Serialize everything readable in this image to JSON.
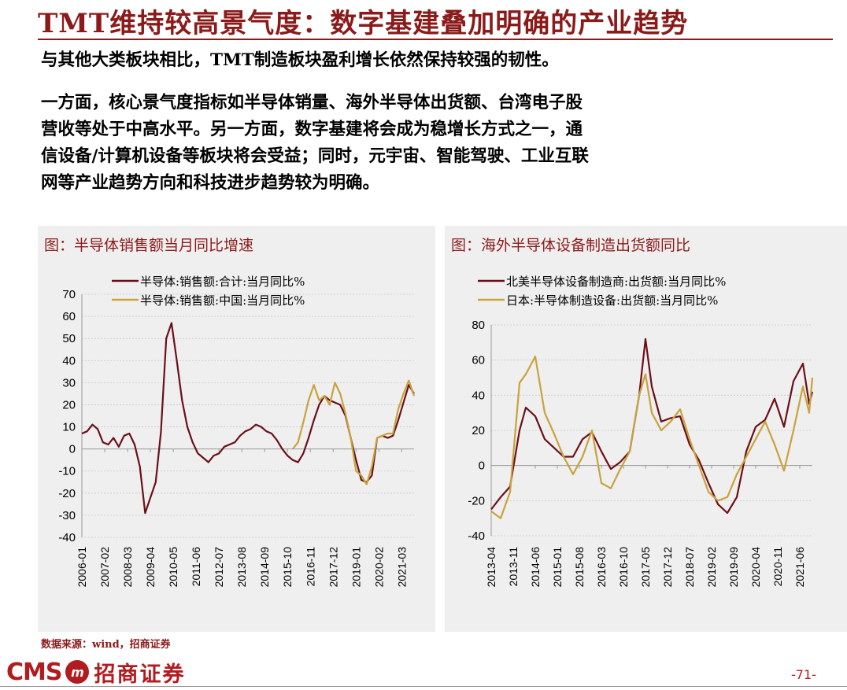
{
  "title": "TMT维持较高景气度：数字基建叠加明确的产业趋势",
  "paragraph1": "与其他大类板块相比，TMT制造板块盈利增长依然保持较强的韧性。",
  "paragraph2_lines": [
    "一方面，核心景气度指标如半导体销量、海外半导体出货额、台湾电子股",
    "营收等处于中高水平。另一方面，数字基建将会成为稳增长方式之一，通",
    "信设备/计算机设备等板块将会受益；同时，元宇宙、智能驾驶、工业互联",
    "网等产业趋势方向和科技进步趋势较为明确。"
  ],
  "source": "数据来源：wind，招商证券",
  "logo": {
    "cms": "CMS",
    "badge": "m",
    "cn": "招商证券"
  },
  "page_number": "-71-",
  "colors": {
    "brand": "#8b1a1a",
    "series_dark": "#6b0f1a",
    "series_gold": "#c9a23c",
    "panel_bg": "#efefef"
  },
  "chart_data": [
    {
      "type": "line",
      "title": "图：半导体销售额当月同比增速",
      "xlabel": "",
      "ylabel": "",
      "ylim": [
        -40,
        70
      ],
      "yticks": [
        70,
        60,
        50,
        40,
        30,
        20,
        10,
        0,
        -10,
        -20,
        -30,
        -40
      ],
      "x_tick_labels": [
        "2006-01",
        "2007-02",
        "2008-03",
        "2009-04",
        "2010-05",
        "2011-06",
        "2012-07",
        "2013-08",
        "2014-09",
        "2015-10",
        "2016-11",
        "2017-12",
        "2019-01",
        "2020-02",
        "2021-03"
      ],
      "x_range": [
        "2006-01",
        "2021-10"
      ],
      "grid": true,
      "legend": "top-center",
      "series": [
        {
          "name": "半导体:销售额:合计:当月同比%",
          "color": "#6b0f1a",
          "points": [
            [
              "2006-01",
              7
            ],
            [
              "2006-04",
              8
            ],
            [
              "2006-07",
              11
            ],
            [
              "2006-10",
              9
            ],
            [
              "2007-01",
              3
            ],
            [
              "2007-04",
              2
            ],
            [
              "2007-07",
              5
            ],
            [
              "2007-10",
              1
            ],
            [
              "2008-01",
              6
            ],
            [
              "2008-04",
              7
            ],
            [
              "2008-07",
              2
            ],
            [
              "2008-10",
              -8
            ],
            [
              "2009-01",
              -29
            ],
            [
              "2009-04",
              -22
            ],
            [
              "2009-07",
              -15
            ],
            [
              "2009-10",
              8
            ],
            [
              "2010-01",
              50
            ],
            [
              "2010-04",
              57
            ],
            [
              "2010-07",
              40
            ],
            [
              "2010-10",
              22
            ],
            [
              "2011-01",
              10
            ],
            [
              "2011-04",
              3
            ],
            [
              "2011-07",
              -2
            ],
            [
              "2011-10",
              -4
            ],
            [
              "2012-01",
              -6
            ],
            [
              "2012-04",
              -3
            ],
            [
              "2012-07",
              -2
            ],
            [
              "2012-10",
              1
            ],
            [
              "2013-01",
              2
            ],
            [
              "2013-04",
              3
            ],
            [
              "2013-07",
              6
            ],
            [
              "2013-10",
              8
            ],
            [
              "2014-01",
              9
            ],
            [
              "2014-04",
              11
            ],
            [
              "2014-07",
              10
            ],
            [
              "2014-10",
              8
            ],
            [
              "2015-01",
              7
            ],
            [
              "2015-04",
              4
            ],
            [
              "2015-07",
              0
            ],
            [
              "2015-10",
              -3
            ],
            [
              "2016-01",
              -5
            ],
            [
              "2016-04",
              -6
            ],
            [
              "2016-07",
              -2
            ],
            [
              "2016-10",
              5
            ],
            [
              "2017-01",
              13
            ],
            [
              "2017-04",
              20
            ],
            [
              "2017-07",
              24
            ],
            [
              "2017-10",
              22
            ],
            [
              "2018-01",
              21
            ],
            [
              "2018-04",
              20
            ],
            [
              "2018-07",
              15
            ],
            [
              "2018-10",
              5
            ],
            [
              "2019-01",
              -5
            ],
            [
              "2019-04",
              -14
            ],
            [
              "2019-07",
              -15
            ],
            [
              "2019-10",
              -12
            ],
            [
              "2020-01",
              5
            ],
            [
              "2020-04",
              6
            ],
            [
              "2020-07",
              5
            ],
            [
              "2020-10",
              6
            ],
            [
              "2021-01",
              13
            ],
            [
              "2021-04",
              21
            ],
            [
              "2021-07",
              29
            ],
            [
              "2021-10",
              25
            ]
          ]
        },
        {
          "name": "半导体:销售额:中国:当月同比%",
          "color": "#c9a23c",
          "points": [
            [
              "2016-01",
              0
            ],
            [
              "2016-04",
              3
            ],
            [
              "2016-07",
              12
            ],
            [
              "2016-10",
              22
            ],
            [
              "2017-01",
              29
            ],
            [
              "2017-04",
              22
            ],
            [
              "2017-07",
              24
            ],
            [
              "2017-10",
              20
            ],
            [
              "2018-01",
              30
            ],
            [
              "2018-04",
              25
            ],
            [
              "2018-07",
              16
            ],
            [
              "2018-10",
              5
            ],
            [
              "2019-01",
              -10
            ],
            [
              "2019-04",
              -12
            ],
            [
              "2019-07",
              -16
            ],
            [
              "2019-10",
              -8
            ],
            [
              "2020-01",
              5
            ],
            [
              "2020-04",
              6
            ],
            [
              "2020-07",
              7
            ],
            [
              "2020-10",
              7
            ],
            [
              "2021-01",
              18
            ],
            [
              "2021-04",
              25
            ],
            [
              "2021-07",
              31
            ],
            [
              "2021-10",
              24
            ]
          ]
        }
      ]
    },
    {
      "type": "line",
      "title": "图：海外半导体设备制造出货额同比",
      "xlabel": "",
      "ylabel": "",
      "ylim": [
        -40,
        80
      ],
      "yticks": [
        80,
        60,
        40,
        20,
        0,
        -20,
        -40
      ],
      "x_tick_labels": [
        "2013-04",
        "2013-11",
        "2014-06",
        "2015-01",
        "2015-08",
        "2016-03",
        "2016-10",
        "2017-05",
        "2017-12",
        "2018-07",
        "2019-02",
        "2019-09",
        "2020-04",
        "2020-11",
        "2021-06"
      ],
      "x_range": [
        "2013-04",
        "2021-10"
      ],
      "grid": true,
      "legend": "top-center",
      "series": [
        {
          "name": "北美半导体设备制造商:出货额:当月同比%",
          "color": "#6b0f1a",
          "points": [
            [
              "2013-04",
              -25
            ],
            [
              "2013-07",
              -18
            ],
            [
              "2013-10",
              -12
            ],
            [
              "2014-01",
              20
            ],
            [
              "2014-03",
              33
            ],
            [
              "2014-06",
              28
            ],
            [
              "2014-09",
              15
            ],
            [
              "2014-12",
              10
            ],
            [
              "2015-03",
              5
            ],
            [
              "2015-06",
              5
            ],
            [
              "2015-09",
              15
            ],
            [
              "2015-12",
              19
            ],
            [
              "2016-03",
              8
            ],
            [
              "2016-06",
              -2
            ],
            [
              "2016-09",
              2
            ],
            [
              "2016-12",
              8
            ],
            [
              "2017-03",
              40
            ],
            [
              "2017-05",
              72
            ],
            [
              "2017-07",
              45
            ],
            [
              "2017-10",
              25
            ],
            [
              "2018-01",
              27
            ],
            [
              "2018-04",
              28
            ],
            [
              "2018-07",
              12
            ],
            [
              "2018-10",
              3
            ],
            [
              "2019-01",
              -10
            ],
            [
              "2019-04",
              -22
            ],
            [
              "2019-07",
              -27
            ],
            [
              "2019-10",
              -18
            ],
            [
              "2020-01",
              8
            ],
            [
              "2020-04",
              22
            ],
            [
              "2020-07",
              26
            ],
            [
              "2020-10",
              38
            ],
            [
              "2021-01",
              22
            ],
            [
              "2021-04",
              48
            ],
            [
              "2021-07",
              58
            ],
            [
              "2021-09",
              35
            ],
            [
              "2021-10",
              42
            ]
          ]
        },
        {
          "name": "日本:半导体制造设备:出货额:当月同比%",
          "color": "#c9a23c",
          "points": [
            [
              "2013-04",
              -26
            ],
            [
              "2013-07",
              -30
            ],
            [
              "2013-10",
              -15
            ],
            [
              "2014-01",
              47
            ],
            [
              "2014-03",
              52
            ],
            [
              "2014-06",
              62
            ],
            [
              "2014-09",
              30
            ],
            [
              "2014-12",
              18
            ],
            [
              "2015-03",
              5
            ],
            [
              "2015-06",
              -5
            ],
            [
              "2015-09",
              5
            ],
            [
              "2015-12",
              20
            ],
            [
              "2016-03",
              -10
            ],
            [
              "2016-06",
              -13
            ],
            [
              "2016-09",
              -2
            ],
            [
              "2016-12",
              8
            ],
            [
              "2017-03",
              40
            ],
            [
              "2017-05",
              52
            ],
            [
              "2017-07",
              30
            ],
            [
              "2017-10",
              20
            ],
            [
              "2018-01",
              25
            ],
            [
              "2018-04",
              32
            ],
            [
              "2018-07",
              15
            ],
            [
              "2018-10",
              0
            ],
            [
              "2019-01",
              -15
            ],
            [
              "2019-04",
              -20
            ],
            [
              "2019-07",
              -18
            ],
            [
              "2019-10",
              -5
            ],
            [
              "2020-01",
              5
            ],
            [
              "2020-04",
              15
            ],
            [
              "2020-07",
              25
            ],
            [
              "2020-10",
              12
            ],
            [
              "2021-01",
              -3
            ],
            [
              "2021-04",
              20
            ],
            [
              "2021-07",
              45
            ],
            [
              "2021-09",
              30
            ],
            [
              "2021-10",
              50
            ]
          ]
        }
      ]
    }
  ]
}
